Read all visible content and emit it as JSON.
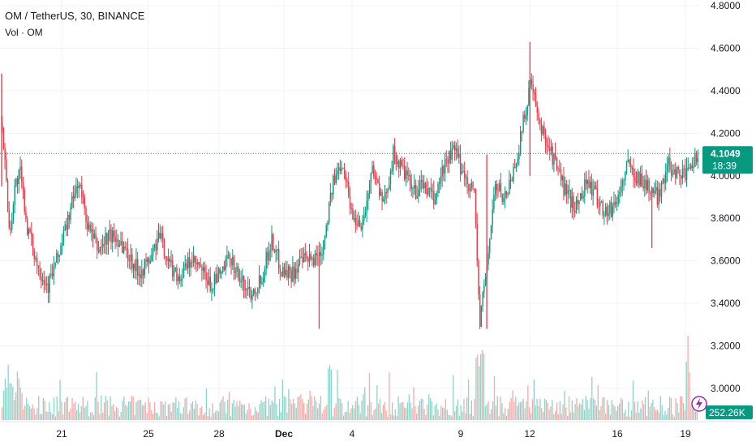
{
  "chart_data": {
    "type": "candlestick",
    "symbol_title": "OM / TetherUS, 30, BINANCE",
    "volume_label": "Vol · OM",
    "y_axis": {
      "ticks": [
        4.8,
        4.6,
        4.4,
        4.2,
        4.0,
        3.8,
        3.6,
        3.4,
        3.2,
        3.0
      ],
      "tick_labels": [
        "4.8000",
        "4.6000",
        "4.4000",
        "4.2000",
        "4.0000",
        "3.8000",
        "3.6000",
        "3.4000",
        "3.2000",
        "3.0000"
      ],
      "range": [
        2.98,
        4.82
      ]
    },
    "x_axis": {
      "tick_labels": [
        "21",
        "25",
        "28",
        "Dec",
        "4",
        "9",
        "12",
        "16",
        "19"
      ]
    },
    "price_path": [
      {
        "t": 0,
        "p": 4.25
      },
      {
        "t": 3,
        "p": 3.72
      },
      {
        "t": 5,
        "p": 3.95
      },
      {
        "t": 7,
        "p": 4.02
      },
      {
        "t": 10,
        "p": 3.75
      },
      {
        "t": 14,
        "p": 3.58
      },
      {
        "t": 18,
        "p": 3.48
      },
      {
        "t": 22,
        "p": 3.62
      },
      {
        "t": 26,
        "p": 3.8
      },
      {
        "t": 30,
        "p": 3.98
      },
      {
        "t": 34,
        "p": 3.75
      },
      {
        "t": 38,
        "p": 3.65
      },
      {
        "t": 42,
        "p": 3.72
      },
      {
        "t": 46,
        "p": 3.7
      },
      {
        "t": 50,
        "p": 3.62
      },
      {
        "t": 54,
        "p": 3.55
      },
      {
        "t": 58,
        "p": 3.6
      },
      {
        "t": 62,
        "p": 3.72
      },
      {
        "t": 66,
        "p": 3.58
      },
      {
        "t": 70,
        "p": 3.52
      },
      {
        "t": 74,
        "p": 3.6
      },
      {
        "t": 78,
        "p": 3.56
      },
      {
        "t": 82,
        "p": 3.48
      },
      {
        "t": 86,
        "p": 3.54
      },
      {
        "t": 90,
        "p": 3.62
      },
      {
        "t": 94,
        "p": 3.5
      },
      {
        "t": 98,
        "p": 3.45
      },
      {
        "t": 102,
        "p": 3.52
      },
      {
        "t": 106,
        "p": 3.7
      },
      {
        "t": 110,
        "p": 3.56
      },
      {
        "t": 114,
        "p": 3.54
      },
      {
        "t": 118,
        "p": 3.6
      },
      {
        "t": 122,
        "p": 3.6
      },
      {
        "t": 126,
        "p": 3.66
      },
      {
        "t": 130,
        "p": 3.95
      },
      {
        "t": 134,
        "p": 4.08
      },
      {
        "t": 138,
        "p": 3.8
      },
      {
        "t": 142,
        "p": 3.78
      },
      {
        "t": 146,
        "p": 4.05
      },
      {
        "t": 150,
        "p": 3.85
      },
      {
        "t": 154,
        "p": 4.1
      },
      {
        "t": 158,
        "p": 4.02
      },
      {
        "t": 162,
        "p": 3.92
      },
      {
        "t": 166,
        "p": 3.96
      },
      {
        "t": 170,
        "p": 3.88
      },
      {
        "t": 174,
        "p": 4.05
      },
      {
        "t": 178,
        "p": 4.12
      },
      {
        "t": 182,
        "p": 4.0
      },
      {
        "t": 186,
        "p": 3.92
      },
      {
        "t": 188,
        "p": 3.3
      },
      {
        "t": 191,
        "p": 3.6
      },
      {
        "t": 194,
        "p": 3.95
      },
      {
        "t": 198,
        "p": 3.9
      },
      {
        "t": 202,
        "p": 4.05
      },
      {
        "t": 206,
        "p": 4.3
      },
      {
        "t": 208,
        "p": 4.45
      },
      {
        "t": 211,
        "p": 4.25
      },
      {
        "t": 214,
        "p": 4.18
      },
      {
        "t": 218,
        "p": 4.05
      },
      {
        "t": 222,
        "p": 3.92
      },
      {
        "t": 226,
        "p": 3.85
      },
      {
        "t": 230,
        "p": 3.98
      },
      {
        "t": 234,
        "p": 3.9
      },
      {
        "t": 238,
        "p": 3.82
      },
      {
        "t": 242,
        "p": 3.88
      },
      {
        "t": 246,
        "p": 4.05
      },
      {
        "t": 250,
        "p": 4.0
      },
      {
        "t": 254,
        "p": 3.95
      },
      {
        "t": 258,
        "p": 3.9
      },
      {
        "t": 262,
        "p": 4.05
      },
      {
        "t": 266,
        "p": 4.02
      },
      {
        "t": 270,
        "p": 4.0
      },
      {
        "t": 274,
        "p": 4.1
      }
    ],
    "spikes": [
      {
        "t": 191,
        "low": 3.28,
        "high": 4.1
      },
      {
        "t": 208,
        "low": 4.0,
        "high": 4.63
      },
      {
        "t": 0,
        "low": 3.95,
        "high": 4.48
      },
      {
        "t": 125,
        "low": 3.28,
        "high": 3.62
      },
      {
        "t": 256,
        "low": 3.66,
        "high": 3.95
      }
    ],
    "current_price": {
      "value": 4.1049,
      "label": "4.1049",
      "countdown": "18:39",
      "color": "#089981"
    },
    "volume_badge": {
      "value_label": "252.26K",
      "color": "#089981"
    },
    "colors": {
      "up": "#089981",
      "down": "#f23645",
      "vol_up": "#8fd3c8",
      "vol_down": "#f7a9a7",
      "grid": "#f0f3fa"
    },
    "grid": true
  }
}
